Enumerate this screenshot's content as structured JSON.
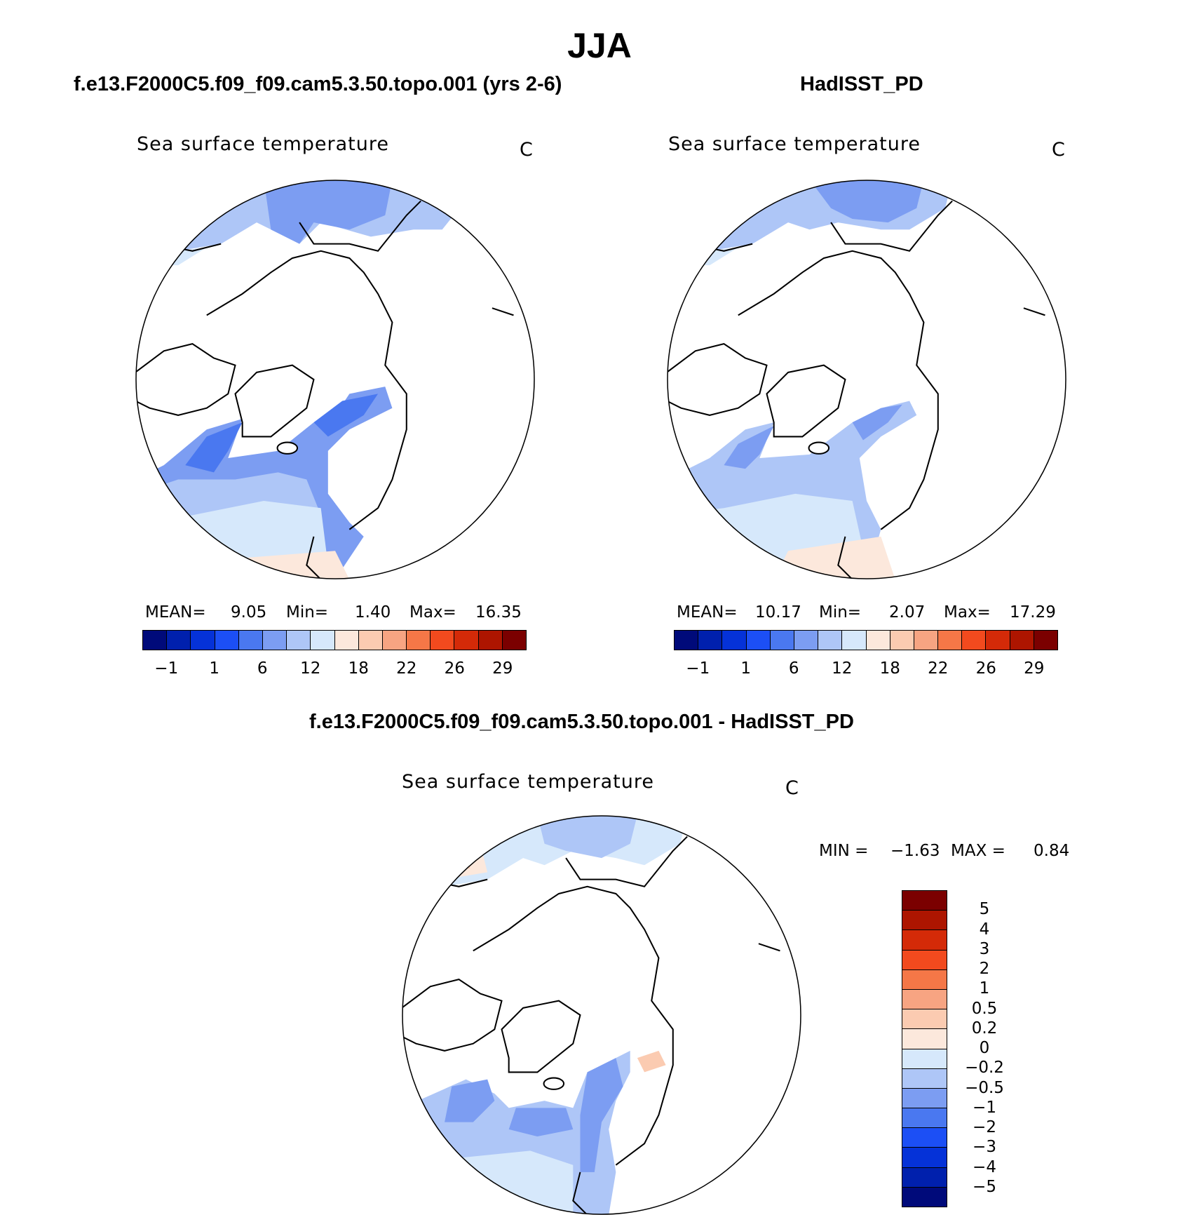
{
  "main_title": "JJA",
  "panels": [
    {
      "case": "f.e13.F2000C5.f09_f09.cam5.3.50.topo.001 (yrs 2-6)",
      "variable": "Sea surface temperature",
      "units": "C",
      "stats": {
        "mean_label": "MEAN=",
        "mean": "9.05",
        "min_label": "Min=",
        "min": "1.40",
        "max_label": "Max=",
        "max": "16.35"
      }
    },
    {
      "case": "HadISST_PD",
      "variable": "Sea surface temperature",
      "units": "C",
      "stats": {
        "mean_label": "MEAN=",
        "mean": "10.17",
        "min_label": "Min=",
        "min": "2.07",
        "max_label": "Max=",
        "max": "17.29"
      }
    }
  ],
  "diff_panel": {
    "case": "f.e13.F2000C5.f09_f09.cam5.3.50.topo.001 - HadISST_PD",
    "variable": "Sea surface temperature",
    "units": "C",
    "min_label": "MIN =",
    "min": "−1.63",
    "max_label": "MAX =",
    "max": "0.84"
  },
  "abs_colorbar": {
    "colors": [
      "#000a7a",
      "#0020ad",
      "#0532d8",
      "#1c4ff5",
      "#4a78f0",
      "#7c9df2",
      "#aec6f7",
      "#d6e8fb",
      "#fce8dc",
      "#fbcbb1",
      "#f7a482",
      "#f57747",
      "#f24a1e",
      "#d42a08",
      "#ad1500",
      "#7b0000"
    ],
    "ticks": [
      "−1",
      "1",
      "6",
      "12",
      "18",
      "22",
      "26",
      "29"
    ]
  },
  "diff_colorbar": {
    "colors": [
      "#7b0000",
      "#ad1500",
      "#d42a08",
      "#f24a1e",
      "#f57747",
      "#f7a482",
      "#fbcbb1",
      "#fce8dc",
      "#d6e8fb",
      "#aec6f7",
      "#7c9df2",
      "#4a78f0",
      "#1c4ff5",
      "#0532d8",
      "#0020ad",
      "#000a7a"
    ],
    "ticks": [
      "5",
      "4",
      "3",
      "2",
      "1",
      "0.5",
      "0.2",
      "0",
      "−0.2",
      "−0.5",
      "−1",
      "−2",
      "−3",
      "−4",
      "−5"
    ]
  }
}
